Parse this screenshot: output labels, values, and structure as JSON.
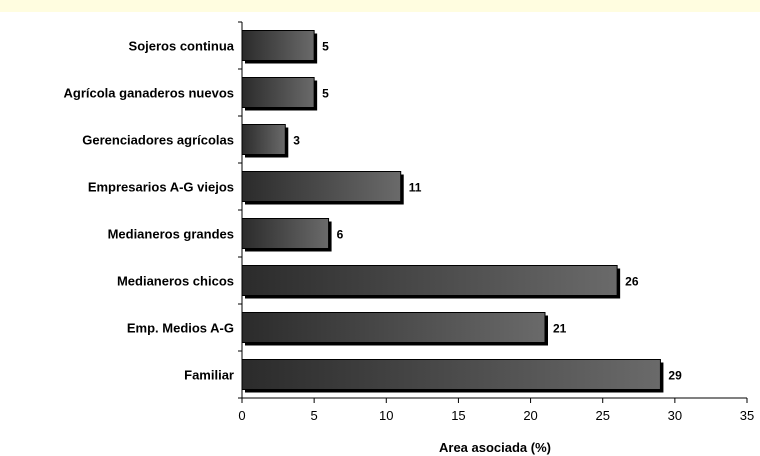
{
  "chart_data": {
    "type": "bar",
    "orientation": "horizontal",
    "categories": [
      "Sojeros continua",
      "Agrícola ganaderos nuevos",
      "Gerenciadores agrícolas",
      "Empresarios A-G viejos",
      "Medianeros grandes",
      "Medianeros chicos",
      "Emp. Medios A-G",
      "Familiar"
    ],
    "values": [
      5,
      5,
      3,
      11,
      6,
      26,
      21,
      29
    ],
    "xlabel": "Area asociada (%)",
    "ylabel": "",
    "xlim": [
      0,
      35
    ],
    "xticks": [
      0,
      5,
      10,
      15,
      20,
      25,
      30,
      35
    ],
    "grid": false,
    "bar_color": "#3a3a3a",
    "background_strip_color": "#fffde0"
  }
}
